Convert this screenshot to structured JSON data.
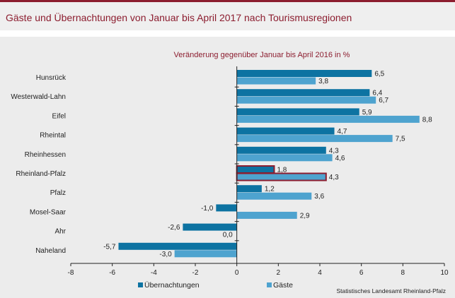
{
  "title": "Gäste und Übernachtungen von Januar bis April 2017 nach Tourismusregionen",
  "source": "Statistisches Landesamt Rheinland-Pfalz",
  "colors": {
    "accent": "#8c1d2f",
    "uebernachtungen": "#0d73a2",
    "gaeste": "#4ea3cf",
    "header_bg": "#efefef",
    "plot_bg": "#ececec"
  },
  "chart_data": {
    "type": "bar",
    "orientation": "horizontal",
    "subtitle": "Veränderung gegenüber Januar bis April 2016 in %",
    "categories": [
      "Hunsrück",
      "Westerwald-Lahn",
      "Eifel",
      "Rheintal",
      "Rheinhessen",
      "Rheinland-Pfalz",
      "Pfalz",
      "Mosel-Saar",
      "Ahr",
      "Naheland"
    ],
    "series": [
      {
        "name": "Übernachtungen",
        "values": [
          6.5,
          6.4,
          5.9,
          4.7,
          4.3,
          1.8,
          1.2,
          -1.0,
          -2.6,
          -5.7
        ]
      },
      {
        "name": "Gäste",
        "values": [
          3.8,
          6.7,
          8.8,
          7.5,
          4.6,
          4.3,
          3.6,
          2.9,
          0.0,
          -3.0
        ]
      }
    ],
    "value_labels": {
      "Übernachtungen": [
        "6,5",
        "6,4",
        "5,9",
        "4,7",
        "4,3",
        "1,8",
        "1,2",
        "-1,0",
        "-2,6",
        "-5,7"
      ],
      "Gäste": [
        "3,8",
        "6,7",
        "8,8",
        "7,5",
        "4,6",
        "4,3",
        "3,6",
        "2,9",
        "0,0",
        "-3,0"
      ]
    },
    "highlight_category": "Rheinland-Pfalz",
    "xlim": [
      -8,
      10
    ],
    "xticks": [
      -8,
      -6,
      -4,
      -2,
      0,
      2,
      4,
      6,
      8,
      10
    ],
    "xtick_labels": [
      "-8",
      "-6",
      "-4",
      "-2",
      "0",
      "2",
      "4",
      "6",
      "8",
      "10"
    ],
    "grid": false,
    "legend_position": "bottom-left"
  }
}
